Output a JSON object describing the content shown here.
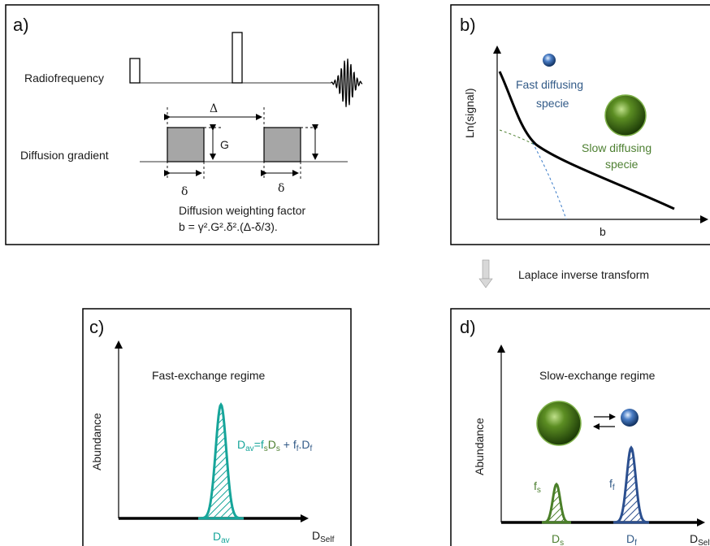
{
  "colors": {
    "teal": "#16a59a",
    "green": "#4a7f28",
    "blue": "#2b4f8f",
    "blue_text": "#335b88",
    "green_text": "#4e8032",
    "gray_fill": "#a6a6a6"
  },
  "panel_a": {
    "label": "a)",
    "radiofrequency": "Radiofrequency",
    "diffusion_gradient": "Diffusion gradient",
    "delta_big": "Δ",
    "g": "G",
    "delta_small_1": "δ",
    "delta_small_2": "δ",
    "factor_title": "Diffusion weighting factor",
    "factor_formula": "b = γ².G².δ².(Δ-δ/3)."
  },
  "panel_b": {
    "label": "b)",
    "ylabel": "Ln(signal)",
    "xlabel": "b",
    "fast_line1": "Fast diffusing",
    "fast_line2": "specie",
    "slow_line1": "Slow diffusing",
    "slow_line2": "specie"
  },
  "transform": {
    "label": "Laplace inverse transform"
  },
  "panel_c": {
    "label": "c)",
    "title": "Fast-exchange regime",
    "ylabel": "Abundance",
    "eq_D": "D",
    "eq_av": "av",
    "eq_mid": "=f",
    "eq_s": "s",
    "eq_D2": "D",
    "eq_s2": "s",
    "eq_plus": " + f",
    "eq_f": "f",
    "eq_dot": ".D",
    "eq_f2": "f",
    "peak_D": "D",
    "peak_sub": "av",
    "axis_D": "D",
    "axis_sub": "Self"
  },
  "panel_d": {
    "label": "d)",
    "title": "Slow-exchange regime",
    "ylabel": "Abundance",
    "fs": "f",
    "fs_sub": "s",
    "ff": "f",
    "ff_sub": "f",
    "ds": "D",
    "ds_sub": "s",
    "df": "D",
    "df_sub": "f",
    "axis_D": "D",
    "axis_sub": "Self"
  }
}
